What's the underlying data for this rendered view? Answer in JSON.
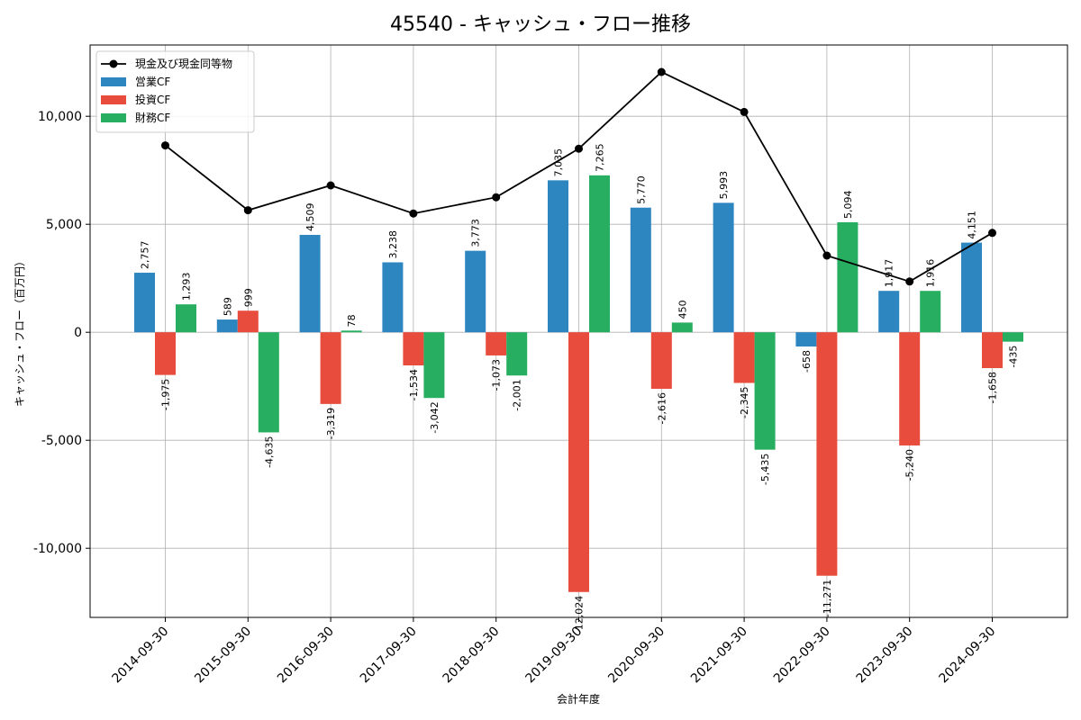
{
  "chart_data": {
    "type": "bar",
    "title": "45540 - キャッシュ・フロー推移",
    "xlabel": "会計年度",
    "ylabel": "キャッシュ・フロー（百万円）",
    "ylim": [
      -13200,
      13300
    ],
    "yticks": [
      -10000,
      -5000,
      0,
      5000,
      10000
    ],
    "ytick_labels": [
      "-10,000",
      "-5,000",
      "0",
      "5,000",
      "10,000"
    ],
    "grid": true,
    "legend_position": "top-left",
    "categories": [
      "2014-09-30",
      "2015-09-30",
      "2016-09-30",
      "2017-09-30",
      "2018-09-30",
      "2019-09-30",
      "2020-09-30",
      "2021-09-30",
      "2022-09-30",
      "2023-09-30",
      "2024-09-30"
    ],
    "series": [
      {
        "name": "営業CF",
        "kind": "bar",
        "color": "#2e86c1",
        "values": [
          2757,
          589,
          4509,
          3238,
          3773,
          7035,
          5770,
          5993,
          -658,
          1917,
          4151
        ],
        "labels": [
          "2,757",
          "589",
          "4,509",
          "3,238",
          "3,773",
          "7,035",
          "5,770",
          "5,993",
          "-658",
          "1,917",
          "4,151"
        ]
      },
      {
        "name": "投資CF",
        "kind": "bar",
        "color": "#e74c3c",
        "values": [
          -1975,
          999,
          -3319,
          -1534,
          -1073,
          -12024,
          -2616,
          -2345,
          -11271,
          -5240,
          -1658
        ],
        "labels": [
          "-1,975",
          "999",
          "-3,319",
          "-1,534",
          "-1,073",
          "-12,024",
          "-2,616",
          "-2,345",
          "-11,271",
          "-5,240",
          "-1,658"
        ]
      },
      {
        "name": "財務CF",
        "kind": "bar",
        "color": "#27ae60",
        "values": [
          1293,
          -4635,
          78,
          -3042,
          -2001,
          7265,
          450,
          -5435,
          5094,
          1916,
          -435
        ],
        "labels": [
          "1,293",
          "-4,635",
          "78",
          "-3,042",
          "-2,001",
          "7,265",
          "450",
          "-5,435",
          "5,094",
          "1,916",
          "-435"
        ]
      },
      {
        "name": "現金及び現金同等物",
        "kind": "line",
        "color": "#000000",
        "values": [
          8650,
          5650,
          6800,
          5500,
          6250,
          8500,
          12050,
          10200,
          3550,
          2350,
          4600
        ]
      }
    ]
  }
}
